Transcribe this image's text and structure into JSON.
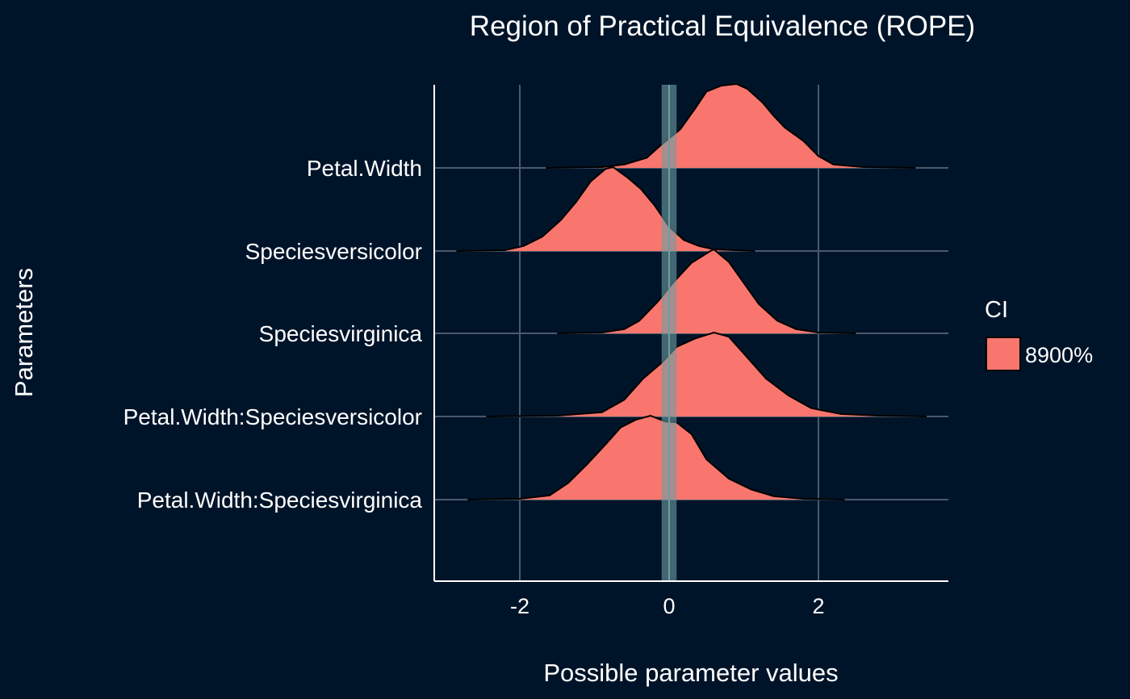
{
  "colors": {
    "background": "#001429",
    "grid": "#4a5a6b",
    "axis": "#ffffff",
    "text": "#ffffff",
    "density_fill": "#f8766d",
    "density_stroke": "#000000",
    "rope_band": "#6e9fa3"
  },
  "chart_data": {
    "type": "area",
    "subtype": "ridgeline-density",
    "title": "Region of Practical Equivalence (ROPE)",
    "xlabel": "Possible parameter values",
    "ylabel": "Parameters",
    "xlim": [
      -3.2,
      3.7
    ],
    "x_ticks": [
      -2,
      0,
      2
    ],
    "x_tick_labels": [
      "-2",
      "0",
      "2"
    ],
    "grid": true,
    "rope": [
      -0.1,
      0.1
    ],
    "categories": [
      "Petal.Width",
      "Speciesversicolor",
      "Speciesvirginica",
      "Petal.Width:Speciesversicolor",
      "Petal.Width:Speciesvirginica"
    ],
    "series": [
      {
        "name": "Petal.Width",
        "range": [
          -1.65,
          3.3
        ],
        "curve": [
          [
            -1.65,
            0
          ],
          [
            -0.9,
            0.01
          ],
          [
            -0.6,
            0.04
          ],
          [
            -0.3,
            0.12
          ],
          [
            -0.1,
            0.28
          ],
          [
            0.15,
            0.46
          ],
          [
            0.35,
            0.71
          ],
          [
            0.5,
            0.91
          ],
          [
            0.7,
            0.98
          ],
          [
            0.9,
            1.0
          ],
          [
            1.05,
            0.94
          ],
          [
            1.25,
            0.78
          ],
          [
            1.4,
            0.62
          ],
          [
            1.55,
            0.48
          ],
          [
            1.8,
            0.32
          ],
          [
            2.0,
            0.14
          ],
          [
            2.2,
            0.04
          ],
          [
            2.6,
            0.01
          ],
          [
            3.3,
            0
          ]
        ]
      },
      {
        "name": "Speciesversicolor",
        "range": [
          -2.85,
          1.15
        ],
        "curve": [
          [
            -2.85,
            0
          ],
          [
            -2.2,
            0.01
          ],
          [
            -1.95,
            0.06
          ],
          [
            -1.7,
            0.17
          ],
          [
            -1.45,
            0.37
          ],
          [
            -1.25,
            0.58
          ],
          [
            -1.05,
            0.83
          ],
          [
            -0.85,
            0.98
          ],
          [
            -0.75,
            1.0
          ],
          [
            -0.55,
            0.87
          ],
          [
            -0.38,
            0.74
          ],
          [
            -0.2,
            0.55
          ],
          [
            0.0,
            0.29
          ],
          [
            0.2,
            0.13
          ],
          [
            0.4,
            0.06
          ],
          [
            0.6,
            0.02
          ],
          [
            1.15,
            0
          ]
        ]
      },
      {
        "name": "Speciesvirginica",
        "range": [
          -1.5,
          2.5
        ],
        "curve": [
          [
            -1.5,
            0
          ],
          [
            -0.9,
            0.01
          ],
          [
            -0.6,
            0.05
          ],
          [
            -0.4,
            0.15
          ],
          [
            -0.15,
            0.38
          ],
          [
            0.05,
            0.6
          ],
          [
            0.3,
            0.84
          ],
          [
            0.55,
            0.98
          ],
          [
            0.6,
            1.0
          ],
          [
            0.8,
            0.85
          ],
          [
            1.0,
            0.6
          ],
          [
            1.2,
            0.35
          ],
          [
            1.45,
            0.15
          ],
          [
            1.7,
            0.05
          ],
          [
            2.0,
            0.01
          ],
          [
            2.5,
            0
          ]
        ]
      },
      {
        "name": "Petal.Width:Speciesversicolor",
        "range": [
          -2.45,
          3.45
        ],
        "curve": [
          [
            -2.45,
            0
          ],
          [
            -1.5,
            0.01
          ],
          [
            -0.9,
            0.05
          ],
          [
            -0.6,
            0.2
          ],
          [
            -0.35,
            0.45
          ],
          [
            -0.1,
            0.64
          ],
          [
            0.1,
            0.83
          ],
          [
            0.35,
            0.93
          ],
          [
            0.6,
            1.0
          ],
          [
            0.8,
            0.95
          ],
          [
            1.0,
            0.75
          ],
          [
            1.3,
            0.45
          ],
          [
            1.6,
            0.25
          ],
          [
            1.9,
            0.1
          ],
          [
            2.3,
            0.03
          ],
          [
            2.8,
            0.01
          ],
          [
            3.45,
            0
          ]
        ]
      },
      {
        "name": "Petal.Width:Speciesvirginica",
        "range": [
          -2.7,
          2.35
        ],
        "curve": [
          [
            -2.7,
            0
          ],
          [
            -2.0,
            0.01
          ],
          [
            -1.6,
            0.05
          ],
          [
            -1.35,
            0.2
          ],
          [
            -1.1,
            0.42
          ],
          [
            -0.85,
            0.66
          ],
          [
            -0.65,
            0.86
          ],
          [
            -0.45,
            0.95
          ],
          [
            -0.25,
            1.0
          ],
          [
            -0.05,
            0.93
          ],
          [
            0.1,
            0.92
          ],
          [
            0.3,
            0.78
          ],
          [
            0.5,
            0.48
          ],
          [
            0.8,
            0.25
          ],
          [
            1.1,
            0.12
          ],
          [
            1.4,
            0.04
          ],
          [
            1.8,
            0.01
          ],
          [
            2.35,
            0
          ]
        ]
      }
    ],
    "legend": {
      "title": "CI",
      "position": "right",
      "entries": [
        {
          "label": "8900%",
          "color": "#f8766d"
        }
      ]
    }
  }
}
